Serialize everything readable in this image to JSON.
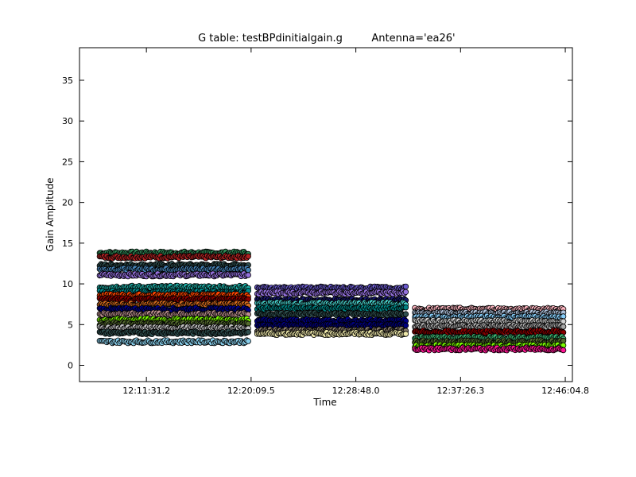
{
  "chart_data": {
    "type": "scatter",
    "title": "G table: testBPdinitialgain.g",
    "subtitle": "Antenna='ea26'",
    "xlabel": "Time",
    "ylabel": "Gain Amplitude",
    "xlim": [
      "12:06:00",
      "12:46:40"
    ],
    "ylim": [
      -2,
      39
    ],
    "x_ticks": [
      "12:11:31.2",
      "12:20:09.5",
      "12:28:48.0",
      "12:37:26.3",
      "12:46:04.8"
    ],
    "y_ticks": [
      0,
      5,
      10,
      15,
      20,
      25,
      30,
      35
    ],
    "grid": false,
    "marker_edge_color": "#000000",
    "scans": [
      {
        "x_start": "12:07:40",
        "x_end": "12:20:00",
        "bands": [
          {
            "y": 13.8,
            "color": "#2e8b57"
          },
          {
            "y": 13.3,
            "color": "#b22222"
          },
          {
            "y": 12.3,
            "color": "#2f4f4f"
          },
          {
            "y": 11.8,
            "color": "#4682b4"
          },
          {
            "y": 11.1,
            "color": "#9370db"
          },
          {
            "y": 9.6,
            "color": "#20b2aa"
          },
          {
            "y": 9.0,
            "color": "#008b8b"
          },
          {
            "y": 8.6,
            "color": "#ff4500"
          },
          {
            "y": 8.1,
            "color": "#8b0000"
          },
          {
            "y": 7.5,
            "color": "#d2691e"
          },
          {
            "y": 6.9,
            "color": "#00008b"
          },
          {
            "y": 6.3,
            "color": "#bc8f8f"
          },
          {
            "y": 5.6,
            "color": "#7cfc00"
          },
          {
            "y": 5.1,
            "color": "#556b2f"
          },
          {
            "y": 4.6,
            "color": "#c0c0c0"
          },
          {
            "y": 4.0,
            "color": "#2f4f4f"
          },
          {
            "y": 2.9,
            "color": "#87ceeb"
          }
        ]
      },
      {
        "x_start": "12:20:40",
        "x_end": "12:33:00",
        "bands": [
          {
            "y": 9.5,
            "color": "#6a5acd"
          },
          {
            "y": 8.9,
            "color": "#9370db"
          },
          {
            "y": 8.0,
            "color": "#191970"
          },
          {
            "y": 7.6,
            "color": "#48d1cc"
          },
          {
            "y": 7.0,
            "color": "#008080"
          },
          {
            "y": 6.3,
            "color": "#2f4f4f"
          },
          {
            "y": 5.5,
            "color": "#00008b"
          },
          {
            "y": 4.9,
            "color": "#000080"
          },
          {
            "y": 4.3,
            "color": "#8b7d6b"
          },
          {
            "y": 3.9,
            "color": "#eee8aa"
          }
        ]
      },
      {
        "x_start": "12:33:40",
        "x_end": "12:46:00",
        "bands": [
          {
            "y": 6.9,
            "color": "#ffb6c1"
          },
          {
            "y": 6.4,
            "color": "#b0c4de"
          },
          {
            "y": 5.9,
            "color": "#87cefa"
          },
          {
            "y": 5.4,
            "color": "#d3d3d3"
          },
          {
            "y": 4.8,
            "color": "#a9a9a9"
          },
          {
            "y": 4.1,
            "color": "#8b0000"
          },
          {
            "y": 3.4,
            "color": "#3cb371"
          },
          {
            "y": 2.9,
            "color": "#556b2f"
          },
          {
            "y": 2.4,
            "color": "#7cfc00"
          },
          {
            "y": 2.0,
            "color": "#ff1493"
          }
        ]
      }
    ]
  }
}
